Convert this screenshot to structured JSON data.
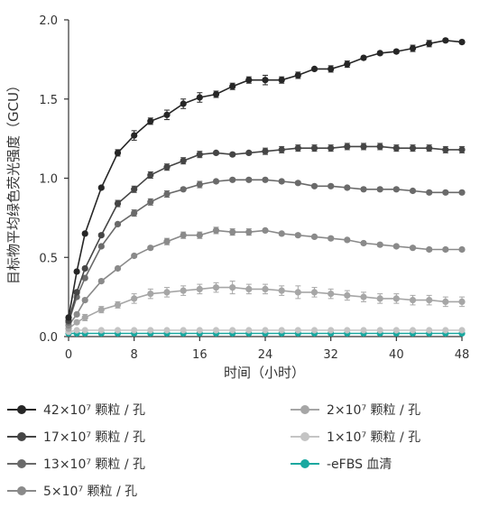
{
  "chart_data": {
    "type": "line",
    "title": "",
    "xlabel": "时间（小时）",
    "ylabel": "目标物平均绿色荧光强度（GCU）",
    "xlim": [
      0,
      48
    ],
    "ylim": [
      0,
      2.0
    ],
    "xticks": [
      "0",
      "8",
      "16",
      "24",
      "32",
      "40",
      "48"
    ],
    "yticks": [
      "0.0",
      "0.5",
      "1.0",
      "1.5",
      "2.0"
    ],
    "grid": false,
    "legend_position": "bottom",
    "x": [
      0,
      1,
      2,
      4,
      6,
      8,
      10,
      12,
      14,
      16,
      18,
      20,
      22,
      24,
      26,
      28,
      30,
      32,
      34,
      36,
      38,
      40,
      42,
      44,
      46,
      48
    ],
    "series": [
      {
        "name": "42×10⁷ 颗粒 / 孔",
        "color": "#262626",
        "values": [
          0.12,
          0.41,
          0.65,
          0.94,
          1.16,
          1.27,
          1.36,
          1.4,
          1.47,
          1.51,
          1.53,
          1.58,
          1.62,
          1.62,
          1.62,
          1.65,
          1.69,
          1.69,
          1.72,
          1.76,
          1.79,
          1.8,
          1.82,
          1.85,
          1.87,
          1.86
        ],
        "errors": [
          0.01,
          0.01,
          0.01,
          0.01,
          0.02,
          0.03,
          0.02,
          0.03,
          0.03,
          0.03,
          0.02,
          0.02,
          0.02,
          0.03,
          0.02,
          0.02,
          0.01,
          0.02,
          0.02,
          0.01,
          0.01,
          0.01,
          0.02,
          0.02,
          0.01,
          0.01
        ]
      },
      {
        "name": "17×10⁷ 颗粒 / 孔",
        "color": "#454545",
        "values": [
          0.1,
          0.28,
          0.43,
          0.64,
          0.84,
          0.93,
          1.02,
          1.07,
          1.11,
          1.15,
          1.16,
          1.15,
          1.16,
          1.17,
          1.18,
          1.19,
          1.19,
          1.19,
          1.2,
          1.2,
          1.2,
          1.19,
          1.19,
          1.19,
          1.18,
          1.18
        ],
        "errors": [
          0.01,
          0.01,
          0.01,
          0.01,
          0.02,
          0.02,
          0.02,
          0.02,
          0.02,
          0.02,
          0.01,
          0.01,
          0.01,
          0.02,
          0.02,
          0.02,
          0.02,
          0.02,
          0.02,
          0.02,
          0.02,
          0.02,
          0.02,
          0.02,
          0.02,
          0.02
        ]
      },
      {
        "name": "13×10⁷ 颗粒 / 孔",
        "color": "#6a6a6a",
        "values": [
          0.09,
          0.25,
          0.37,
          0.57,
          0.71,
          0.78,
          0.85,
          0.9,
          0.93,
          0.96,
          0.98,
          0.99,
          0.99,
          0.99,
          0.98,
          0.97,
          0.95,
          0.95,
          0.94,
          0.93,
          0.93,
          0.93,
          0.92,
          0.91,
          0.91,
          0.91
        ],
        "errors": [
          0.01,
          0.01,
          0.01,
          0.01,
          0.01,
          0.02,
          0.02,
          0.02,
          0.01,
          0.02,
          0.01,
          0.01,
          0.01,
          0.01,
          0.01,
          0.01,
          0.01,
          0.01,
          0.01,
          0.01,
          0.01,
          0.01,
          0.01,
          0.01,
          0.01,
          0.01
        ]
      },
      {
        "name": "5×10⁷ 颗粒 / 孔",
        "color": "#8a8a8a",
        "values": [
          0.07,
          0.14,
          0.23,
          0.35,
          0.43,
          0.51,
          0.56,
          0.6,
          0.64,
          0.64,
          0.67,
          0.66,
          0.66,
          0.67,
          0.65,
          0.64,
          0.63,
          0.62,
          0.61,
          0.59,
          0.58,
          0.57,
          0.56,
          0.55,
          0.55,
          0.55
        ],
        "errors": [
          0.01,
          0.01,
          0.01,
          0.01,
          0.01,
          0.01,
          0.01,
          0.02,
          0.02,
          0.02,
          0.02,
          0.02,
          0.02,
          0.01,
          0.01,
          0.01,
          0.01,
          0.01,
          0.01,
          0.01,
          0.01,
          0.01,
          0.01,
          0.01,
          0.01,
          0.01
        ]
      },
      {
        "name": "2×10⁷ 颗粒 / 孔",
        "color": "#a6a6a6",
        "values": [
          0.05,
          0.09,
          0.12,
          0.17,
          0.2,
          0.24,
          0.27,
          0.28,
          0.29,
          0.3,
          0.31,
          0.31,
          0.3,
          0.3,
          0.29,
          0.28,
          0.28,
          0.27,
          0.26,
          0.25,
          0.24,
          0.24,
          0.23,
          0.23,
          0.22,
          0.22
        ],
        "errors": [
          0.01,
          0.01,
          0.02,
          0.02,
          0.02,
          0.03,
          0.03,
          0.03,
          0.03,
          0.03,
          0.03,
          0.04,
          0.03,
          0.03,
          0.03,
          0.04,
          0.03,
          0.03,
          0.03,
          0.03,
          0.03,
          0.03,
          0.03,
          0.03,
          0.03,
          0.03
        ]
      },
      {
        "name": "1×10⁷ 颗粒 / 孔",
        "color": "#c4c4c4",
        "values": [
          0.03,
          0.04,
          0.04,
          0.04,
          0.04,
          0.04,
          0.04,
          0.04,
          0.04,
          0.04,
          0.04,
          0.04,
          0.04,
          0.04,
          0.04,
          0.04,
          0.04,
          0.04,
          0.04,
          0.04,
          0.04,
          0.04,
          0.04,
          0.04,
          0.04,
          0.04
        ],
        "errors": [
          0.005,
          0.005,
          0.005,
          0.005,
          0.005,
          0.005,
          0.005,
          0.005,
          0.005,
          0.005,
          0.005,
          0.005,
          0.005,
          0.005,
          0.005,
          0.005,
          0.005,
          0.005,
          0.005,
          0.005,
          0.005,
          0.005,
          0.005,
          0.005,
          0.005,
          0.005
        ]
      },
      {
        "name": "-eFBS 血清",
        "color": "#1aa8a0",
        "values": [
          0.02,
          0.02,
          0.02,
          0.02,
          0.02,
          0.02,
          0.02,
          0.02,
          0.02,
          0.02,
          0.02,
          0.02,
          0.02,
          0.02,
          0.02,
          0.02,
          0.02,
          0.02,
          0.02,
          0.02,
          0.02,
          0.02,
          0.02,
          0.02,
          0.02,
          0.02
        ],
        "errors": [
          0.003,
          0.003,
          0.003,
          0.003,
          0.003,
          0.003,
          0.003,
          0.003,
          0.003,
          0.003,
          0.003,
          0.003,
          0.003,
          0.003,
          0.003,
          0.003,
          0.003,
          0.003,
          0.003,
          0.003,
          0.003,
          0.003,
          0.003,
          0.003,
          0.003,
          0.003
        ]
      }
    ]
  }
}
